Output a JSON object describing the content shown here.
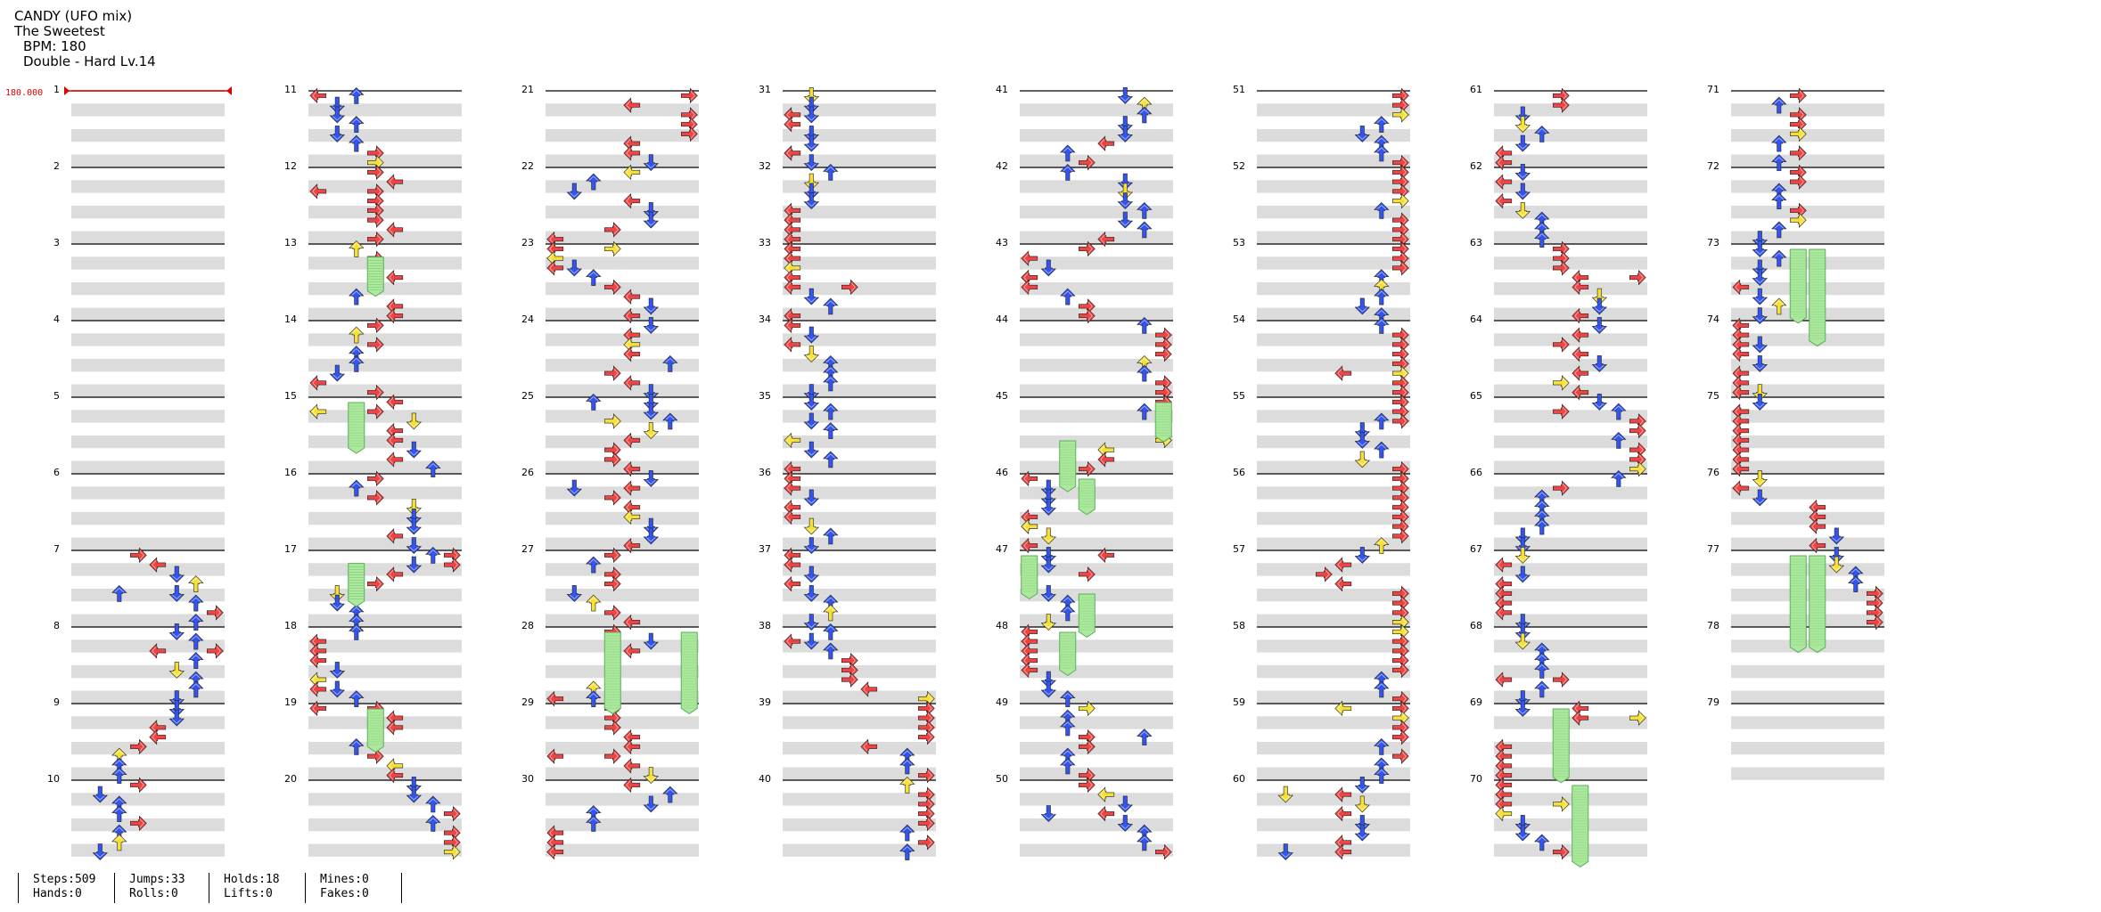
{
  "song": {
    "title": "CANDY (UFO mix)",
    "artist": "The Sweetest",
    "bpm_label": "BPM: 180",
    "difficulty_label": "Double - Hard  Lv.14"
  },
  "bpm_marker": "180.000",
  "measures": {
    "count": 79,
    "per_column": 10,
    "columns": 8
  },
  "colors": {
    "arrow_red": "#ee4444",
    "arrow_blue": "#3355ee",
    "arrow_yellow": "#f5e03a",
    "hold_green": "#aee8a0",
    "hold_stroke": "#55b155",
    "band": "#dcdcdc",
    "bpm_red": "#e00000"
  },
  "stats": {
    "steps": "Steps:509",
    "hands": "Hands:0",
    "jumps": "Jumps:33",
    "rolls": "Rolls:0",
    "holds": "Holds:18",
    "lifts": "Lifts:0",
    "mines": "Mines:0",
    "fakes": "Fakes:0"
  }
}
